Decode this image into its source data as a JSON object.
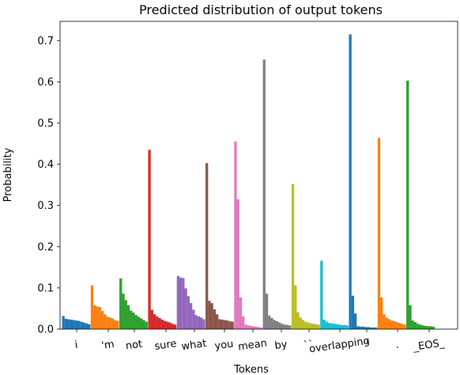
{
  "chart_data": {
    "type": "bar",
    "title": "Predicted distribution of output tokens",
    "xlabel": "Tokens",
    "ylabel": "Probability",
    "ylim": [
      0,
      0.75
    ],
    "yticks": [
      "0.0",
      "0.1",
      "0.2",
      "0.3",
      "0.4",
      "0.5",
      "0.6",
      "0.7"
    ],
    "grid": false,
    "groups": [
      {
        "token": "i",
        "color": "#1f77b4",
        "values": [
          0.032,
          0.025,
          0.024,
          0.023,
          0.022,
          0.021,
          0.02,
          0.018,
          0.016,
          0.014,
          0.012
        ]
      },
      {
        "token": "'m",
        "color": "#ff7f0e",
        "values": [
          0.106,
          0.058,
          0.055,
          0.054,
          0.044,
          0.036,
          0.03,
          0.028,
          0.026,
          0.022,
          0.02
        ]
      },
      {
        "token": "not",
        "color": "#2ca02c",
        "values": [
          0.123,
          0.086,
          0.07,
          0.058,
          0.045,
          0.04,
          0.034,
          0.03,
          0.026,
          0.022,
          0.018
        ]
      },
      {
        "token": "sure",
        "color": "#d62728",
        "values": [
          0.435,
          0.047,
          0.036,
          0.031,
          0.027,
          0.023,
          0.02,
          0.018,
          0.016,
          0.013,
          0.011
        ]
      },
      {
        "token": "what",
        "color": "#9467bd",
        "values": [
          0.129,
          0.125,
          0.124,
          0.099,
          0.08,
          0.063,
          0.047,
          0.034,
          0.031,
          0.028,
          0.024
        ]
      },
      {
        "token": "you",
        "color": "#8c564b",
        "values": [
          0.403,
          0.069,
          0.063,
          0.048,
          0.036,
          0.024,
          0.023,
          0.022,
          0.021,
          0.019,
          0.018
        ]
      },
      {
        "token": "mean",
        "color": "#e377c2",
        "values": [
          0.455,
          0.315,
          0.077,
          0.031,
          0.011,
          0.009,
          0.008,
          0.007,
          0.006,
          0.005,
          0.004
        ]
      },
      {
        "token": "by",
        "color": "#7f7f7f",
        "values": [
          0.654,
          0.086,
          0.033,
          0.027,
          0.022,
          0.019,
          0.016,
          0.013,
          0.011,
          0.01,
          0.009
        ]
      },
      {
        "token": "``",
        "color": "#bcbd22",
        "values": [
          0.352,
          0.106,
          0.041,
          0.028,
          0.022,
          0.018,
          0.016,
          0.014,
          0.013,
          0.012,
          0.011
        ]
      },
      {
        "token": "overlapping",
        "color": "#17becf",
        "values": [
          0.166,
          0.023,
          0.018,
          0.015,
          0.014,
          0.013,
          0.012,
          0.011,
          0.01,
          0.01,
          0.009
        ]
      },
      {
        "token": "''",
        "color": "#1f77b4",
        "values": [
          0.715,
          0.081,
          0.038,
          0.007,
          0.006,
          0.006,
          0.005,
          0.005,
          0.004,
          0.004,
          0.004
        ]
      },
      {
        "token": ".",
        "color": "#ff7f0e",
        "values": [
          0.464,
          0.077,
          0.036,
          0.028,
          0.024,
          0.021,
          0.019,
          0.017,
          0.015,
          0.013,
          0.011
        ]
      },
      {
        "token": "_EOS_",
        "color": "#2ca02c",
        "values": [
          0.603,
          0.058,
          0.021,
          0.017,
          0.013,
          0.011,
          0.009,
          0.008,
          0.007,
          0.007,
          0.006
        ]
      }
    ]
  }
}
